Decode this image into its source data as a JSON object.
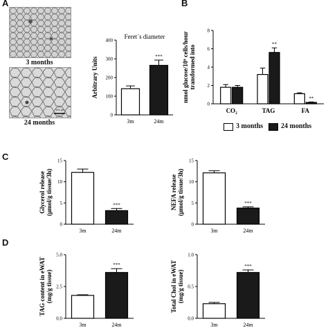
{
  "figure": {
    "panels": [
      "A",
      "B",
      "C",
      "D"
    ],
    "micrographs": [
      {
        "label": "3 months"
      },
      {
        "label": "24 months",
        "scale_text": "100 µm"
      }
    ],
    "legend": [
      {
        "label": "3 months",
        "fill": "#ffffff"
      },
      {
        "label": "24 months",
        "fill": "#1a1a1a"
      }
    ]
  },
  "chart_data": [
    {
      "id": "feret",
      "type": "bar",
      "title": "Feret´s diameter",
      "ylabel": "Arbitrary Units",
      "xlabel": "",
      "categories": [
        "3m",
        "24m"
      ],
      "values": [
        140,
        265
      ],
      "errors": [
        15,
        28
      ],
      "fills": [
        "#ffffff",
        "#1a1a1a"
      ],
      "significance": [
        "",
        "***"
      ],
      "ylim": [
        0,
        400
      ],
      "yticks": [
        0,
        100,
        200,
        300,
        400
      ]
    },
    {
      "id": "glucose",
      "type": "bar",
      "title": "",
      "ylabel": "nmol glucose/10⁶ cells/hour transformed into",
      "xlabel": "",
      "categories": [
        "CO₂",
        "TAG",
        "FA"
      ],
      "series": [
        {
          "name": "3 months",
          "values": [
            1.8,
            3.2,
            1.1
          ],
          "errors": [
            0.3,
            0.7,
            0.1
          ],
          "fill": "#ffffff"
        },
        {
          "name": "24 months",
          "values": [
            1.8,
            5.6,
            0.15
          ],
          "errors": [
            0.2,
            0.5,
            0.05
          ],
          "fill": "#1a1a1a"
        }
      ],
      "significance": [
        [
          "",
          ""
        ],
        [
          "",
          "**"
        ],
        [
          "",
          "**"
        ]
      ],
      "ylim": [
        0,
        8
      ],
      "yticks": [
        0,
        2,
        4,
        6,
        8
      ]
    },
    {
      "id": "glycerol",
      "type": "bar",
      "title": "",
      "ylabel": "Glycerol release (μmol/g tissue/3h)",
      "xlabel": "",
      "categories": [
        "3m",
        "24m"
      ],
      "values": [
        12.2,
        3.2
      ],
      "errors": [
        0.8,
        0.5
      ],
      "fills": [
        "#ffffff",
        "#1a1a1a"
      ],
      "significance": [
        "",
        "***"
      ],
      "ylim": [
        0,
        15
      ],
      "yticks": [
        0,
        5,
        10,
        15
      ]
    },
    {
      "id": "nefa",
      "type": "bar",
      "title": "",
      "ylabel": "NEFA release (μmol/g tissue/3h)",
      "xlabel": "",
      "categories": [
        "3m",
        "24m"
      ],
      "values": [
        12.1,
        3.8
      ],
      "errors": [
        0.5,
        0.3
      ],
      "fills": [
        "#ffffff",
        "#1a1a1a"
      ],
      "significance": [
        "",
        "***"
      ],
      "ylim": [
        0,
        15
      ],
      "yticks": [
        0,
        5,
        10,
        15
      ]
    },
    {
      "id": "tag",
      "type": "bar",
      "title": "",
      "ylabel": "TAG content in eWAT (mg/g tissue)",
      "xlabel": "",
      "categories": [
        "3m",
        "24m"
      ],
      "values": [
        1.8,
        3.6
      ],
      "errors": [
        0.05,
        0.3
      ],
      "fills": [
        "#ffffff",
        "#1a1a1a"
      ],
      "significance": [
        "",
        "***"
      ],
      "ylim": [
        0,
        5
      ],
      "yticks": [
        0.0,
        2.5,
        5.0
      ],
      "tick_format": "1f"
    },
    {
      "id": "chol",
      "type": "bar",
      "title": "",
      "ylabel": "Total Chol in eWAT(mg/g tissue)",
      "xlabel": "",
      "categories": [
        "3m",
        "24m"
      ],
      "values": [
        0.23,
        0.72
      ],
      "errors": [
        0.02,
        0.04
      ],
      "fills": [
        "#ffffff",
        "#1a1a1a"
      ],
      "significance": [
        "",
        "***"
      ],
      "ylim": [
        0,
        1
      ],
      "yticks": [
        0.0,
        0.5,
        1.0
      ],
      "tick_format": "1f"
    }
  ]
}
